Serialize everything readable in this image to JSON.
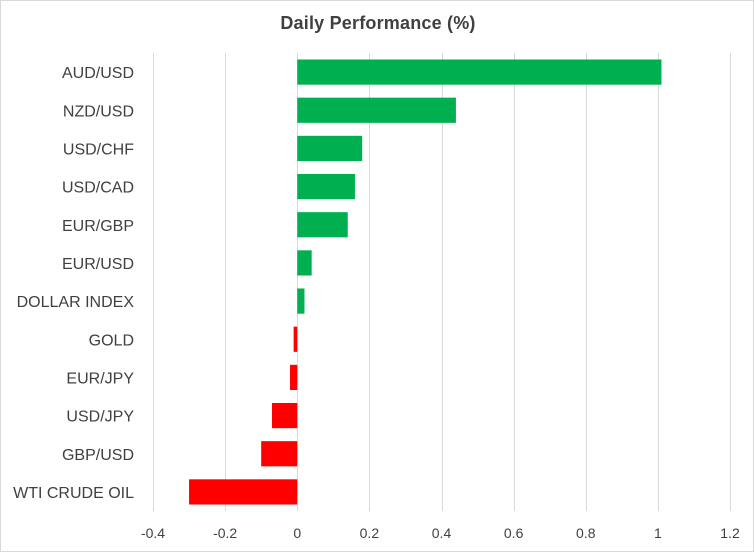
{
  "chart_data": {
    "type": "bar",
    "orientation": "horizontal",
    "title": "Daily Performance  (%)",
    "categories": [
      "AUD/USD",
      "NZD/USD",
      "USD/CHF",
      "USD/CAD",
      "EUR/GBP",
      "EUR/USD",
      "DOLLAR INDEX",
      "GOLD",
      "EUR/JPY",
      "USD/JPY",
      "GBP/USD",
      "WTI CRUDE OIL"
    ],
    "values": [
      1.01,
      0.44,
      0.18,
      0.16,
      0.14,
      0.04,
      0.02,
      -0.01,
      -0.02,
      -0.07,
      -0.1,
      -0.3
    ],
    "xlim": [
      -0.4,
      1.2
    ],
    "xticks": [
      -0.4,
      -0.2,
      0,
      0.2,
      0.4,
      0.6,
      0.8,
      1,
      1.2
    ],
    "xtick_labels": [
      "-0.4",
      "-0.2",
      "0",
      "0.2",
      "0.4",
      "0.6",
      "0.8",
      "1",
      "1.2"
    ],
    "grid": "vertical",
    "colors": {
      "positive": "#00b050",
      "negative": "#ff0000",
      "grid": "#d9d9d9",
      "text": "#404040"
    }
  }
}
